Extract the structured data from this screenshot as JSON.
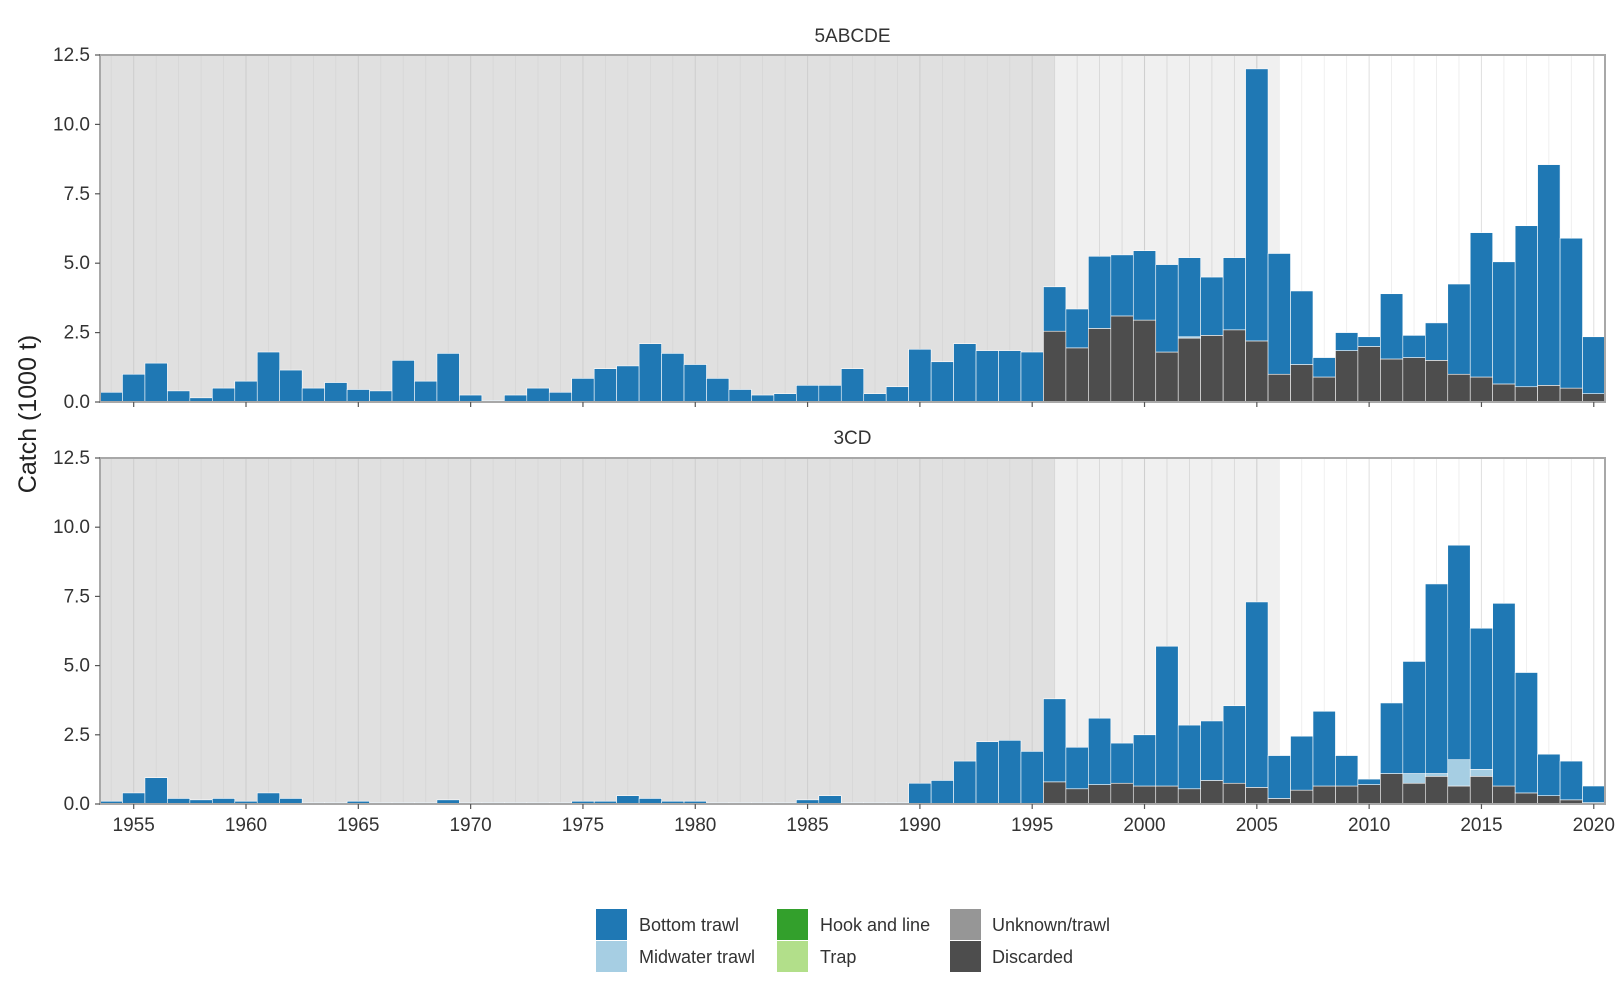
{
  "chart_data": {
    "type": "bar",
    "stacked": true,
    "ylabel": "Catch (1000 t)",
    "ylim": [
      0,
      12.5
    ],
    "yticks": [
      "0.0",
      "2.5",
      "5.0",
      "7.5",
      "10.0",
      "12.5"
    ],
    "xlim": [
      1953.5,
      2020.5
    ],
    "xticks": [
      "1955",
      "1960",
      "1965",
      "1970",
      "1975",
      "1980",
      "1985",
      "1990",
      "1995",
      "2000",
      "2005",
      "2010",
      "2015",
      "2020"
    ],
    "shaded_periods": [
      {
        "from": 1953.5,
        "to": 1996,
        "color": "#e0e0e0"
      },
      {
        "from": 1996,
        "to": 2006,
        "color": "#f0f0f0"
      }
    ],
    "legend_position": "bottom",
    "legend": [
      {
        "label": "Bottom trawl",
        "color": "#1f78b4"
      },
      {
        "label": "Midwater trawl",
        "color": "#a6cee3"
      },
      {
        "label": "Hook and line",
        "color": "#33a02c"
      },
      {
        "label": "Trap",
        "color": "#b2df8a"
      },
      {
        "label": "Unknown/trawl",
        "color": "#969696"
      },
      {
        "label": "Discarded",
        "color": "#4d4d4d"
      }
    ],
    "panels": [
      {
        "title": "5ABCDE",
        "start_year": 1954,
        "series": [
          {
            "name": "Discarded",
            "color": "#4d4d4d",
            "values": [
              0,
              0,
              0,
              0,
              0,
              0,
              0,
              0,
              0,
              0,
              0,
              0,
              0,
              0,
              0,
              0,
              0,
              0,
              0,
              0,
              0,
              0,
              0,
              0,
              0,
              0,
              0,
              0,
              0,
              0,
              0,
              0,
              0,
              0,
              0,
              0,
              0,
              0,
              0,
              0,
              0,
              0,
              2.55,
              1.95,
              2.65,
              3.1,
              2.95,
              1.8,
              2.3,
              2.4,
              2.6,
              2.2,
              1.0,
              1.35,
              0.9,
              1.85,
              2.0,
              1.55,
              1.6,
              1.5,
              1.0,
              0.9,
              0.65,
              0.55,
              0.6,
              0.5,
              0.3
            ]
          },
          {
            "name": "Midwater trawl",
            "color": "#a6cee3",
            "values": [
              0,
              0,
              0,
              0,
              0,
              0,
              0,
              0,
              0,
              0,
              0,
              0,
              0,
              0,
              0,
              0,
              0,
              0,
              0,
              0,
              0,
              0,
              0,
              0,
              0,
              0,
              0,
              0,
              0,
              0,
              0,
              0,
              0,
              0,
              0,
              0,
              0,
              0,
              0,
              0,
              0,
              0,
              0,
              0,
              0,
              0,
              0,
              0,
              0.05,
              0,
              0,
              0,
              0,
              0,
              0,
              0,
              0,
              0,
              0,
              0,
              0,
              0,
              0,
              0,
              0,
              0,
              0
            ]
          },
          {
            "name": "Bottom trawl",
            "color": "#1f78b4",
            "values": [
              0.35,
              1.0,
              1.4,
              0.4,
              0.15,
              0.5,
              0.75,
              1.8,
              1.15,
              0.5,
              0.7,
              0.45,
              0.4,
              1.5,
              0.75,
              1.75,
              0.25,
              0.05,
              0.25,
              0.5,
              0.35,
              0.85,
              1.2,
              1.3,
              2.1,
              1.75,
              1.35,
              0.85,
              0.45,
              0.25,
              0.3,
              0.6,
              0.6,
              1.2,
              0.3,
              0.55,
              1.9,
              1.45,
              2.1,
              1.85,
              1.85,
              1.8,
              1.6,
              1.4,
              2.6,
              2.2,
              2.5,
              3.15,
              2.85,
              2.1,
              2.6,
              9.8,
              4.35,
              2.65,
              0.7,
              0.65,
              0.35,
              2.35,
              0.8,
              1.35,
              3.25,
              5.2,
              4.4,
              5.8,
              7.95,
              5.4,
              2.05
            ]
          }
        ]
      },
      {
        "title": "3CD",
        "start_year": 1954,
        "series": [
          {
            "name": "Discarded",
            "color": "#4d4d4d",
            "values": [
              0,
              0,
              0,
              0,
              0,
              0,
              0,
              0,
              0,
              0,
              0,
              0,
              0,
              0,
              0,
              0,
              0,
              0,
              0,
              0,
              0,
              0,
              0,
              0,
              0,
              0,
              0,
              0,
              0,
              0,
              0,
              0,
              0,
              0,
              0,
              0,
              0,
              0,
              0,
              0,
              0,
              0,
              0.8,
              0.55,
              0.7,
              0.75,
              0.65,
              0.65,
              0.55,
              0.85,
              0.75,
              0.6,
              0.2,
              0.5,
              0.65,
              0.65,
              0.7,
              1.1,
              0.75,
              1.0,
              0.65,
              1.0,
              0.65,
              0.4,
              0.3,
              0.15,
              0.05
            ]
          },
          {
            "name": "Midwater trawl",
            "color": "#a6cee3",
            "values": [
              0,
              0,
              0,
              0,
              0,
              0,
              0,
              0,
              0,
              0,
              0,
              0,
              0,
              0,
              0,
              0,
              0,
              0,
              0,
              0,
              0,
              0,
              0,
              0,
              0,
              0,
              0,
              0,
              0,
              0,
              0,
              0,
              0,
              0,
              0,
              0,
              0,
              0,
              0,
              0,
              0,
              0,
              0,
              0,
              0,
              0,
              0,
              0,
              0,
              0,
              0,
              0,
              0,
              0,
              0,
              0,
              0,
              0,
              0.35,
              0.1,
              0.95,
              0.25,
              0,
              0,
              0,
              0,
              0
            ]
          },
          {
            "name": "Bottom trawl",
            "color": "#1f78b4",
            "values": [
              0.1,
              0.4,
              0.95,
              0.2,
              0.15,
              0.2,
              0.1,
              0.4,
              0.2,
              0.05,
              0.05,
              0.1,
              0.05,
              0.05,
              0.05,
              0.15,
              0.05,
              0.05,
              0.05,
              0.05,
              0.05,
              0.1,
              0.1,
              0.3,
              0.2,
              0.1,
              0.1,
              0.05,
              0.05,
              0.05,
              0.05,
              0.15,
              0.3,
              0.05,
              0.05,
              0.05,
              0.75,
              0.85,
              1.55,
              2.25,
              2.3,
              1.9,
              3.0,
              1.5,
              2.4,
              1.45,
              1.85,
              5.05,
              2.3,
              2.15,
              2.8,
              6.7,
              1.55,
              1.95,
              2.7,
              1.1,
              0.2,
              2.55,
              4.05,
              6.85,
              7.75,
              5.1,
              6.6,
              4.35,
              1.5,
              1.4,
              0.6
            ]
          }
        ]
      }
    ]
  }
}
